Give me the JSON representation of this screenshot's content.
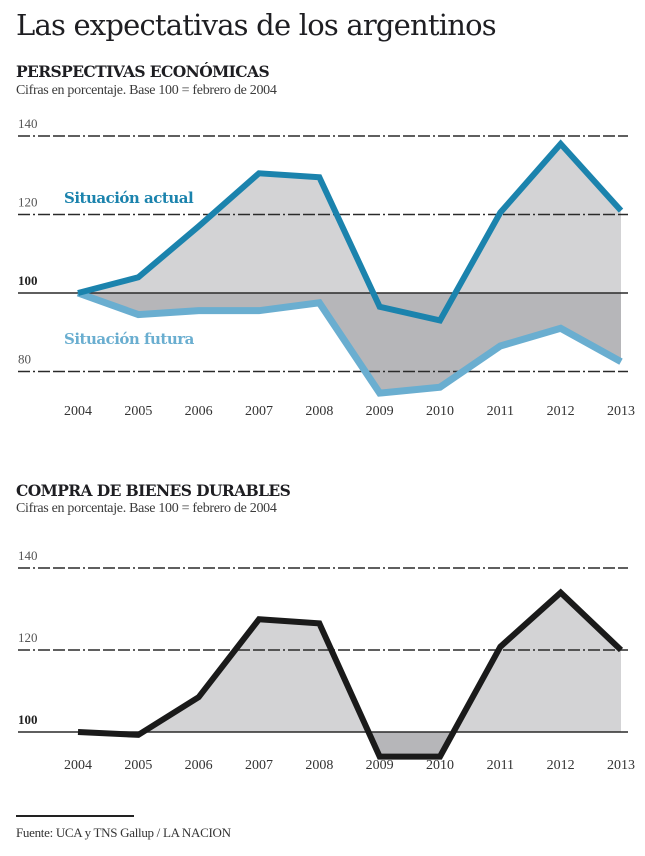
{
  "title": "Las expectativas de los argentinos",
  "source": "Fuente: UCA y TNS Gallup / LA NACION",
  "colors": {
    "actual": "#1b83ad",
    "futura": "#6aaed0",
    "durables": "#1a1a1a",
    "fill_light": "#d3d3d5",
    "fill_dark": "#b6b6b9",
    "grid": "#2a2a2a"
  },
  "chart_data": [
    {
      "type": "area",
      "title": "PERSPECTIVAS ECONÓMICAS",
      "subtitle": "Cifras en porcentaje. Base 100 = febrero de 2004",
      "xlabel": "",
      "ylabel": "",
      "categories": [
        "2004",
        "2005",
        "2006",
        "2007",
        "2008",
        "2009",
        "2010",
        "2011",
        "2012",
        "2013"
      ],
      "yticks": [
        80,
        100,
        120,
        140
      ],
      "ylim": [
        73,
        143
      ],
      "baseline": 100,
      "grid": true,
      "series": [
        {
          "name": "Situación actual",
          "values": [
            100,
            104,
            117,
            130.5,
            129.5,
            96.5,
            93,
            120.5,
            138,
            121
          ]
        },
        {
          "name": "Situación futura",
          "values": [
            100,
            94.5,
            95.5,
            95.5,
            97.5,
            74.5,
            76,
            86.5,
            91,
            82.5
          ]
        }
      ]
    },
    {
      "type": "area",
      "title": "COMPRA DE BIENES DURABLES",
      "subtitle": "Cifras en porcentaje. Base 100 = febrero de 2004",
      "xlabel": "",
      "ylabel": "",
      "categories": [
        "2004",
        "2005",
        "2006",
        "2007",
        "2008",
        "2009",
        "2010",
        "2011",
        "2012",
        "2013"
      ],
      "yticks": [
        100,
        120,
        140
      ],
      "ylim": [
        90,
        143
      ],
      "baseline": 100,
      "grid": true,
      "series": [
        {
          "name": "Compra de bienes durables",
          "values": [
            100,
            99.3,
            108.5,
            127.5,
            126.5,
            94,
            94,
            120.8,
            134,
            120
          ]
        }
      ]
    }
  ]
}
